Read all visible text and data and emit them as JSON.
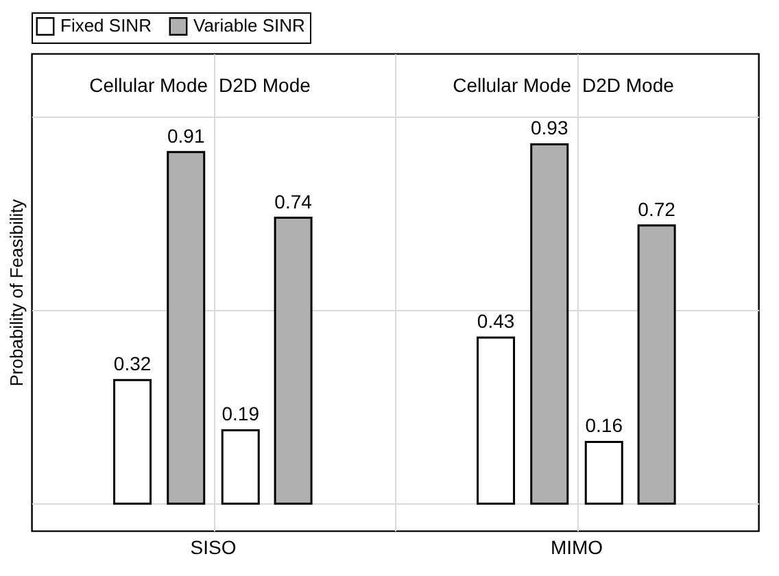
{
  "chart_data": {
    "type": "bar",
    "ylabel": "Probability of Feasibility",
    "categories": [
      "Cellular Mode",
      "D2D Mode",
      "Cellular Mode",
      "D2D Mode"
    ],
    "series": [
      {
        "name": "Fixed SINR",
        "color": "#ffffff",
        "values": [
          0.32,
          0.19,
          0.43,
          0.16
        ]
      },
      {
        "name": "Variable SINR",
        "color": "#b0b0b0",
        "values": [
          0.91,
          0.74,
          0.93,
          0.72
        ]
      }
    ],
    "annotations": [
      "SISO",
      "MIMO"
    ],
    "ylim": [
      -0.07,
      1.165
    ],
    "yticks": [
      {
        "value": 0,
        "label": null
      },
      {
        "value": 0.5,
        "label": null
      },
      {
        "value": 1.0,
        "label": null
      }
    ],
    "tick_labels": false,
    "grid": true,
    "legend": "top",
    "data_labels": true
  }
}
